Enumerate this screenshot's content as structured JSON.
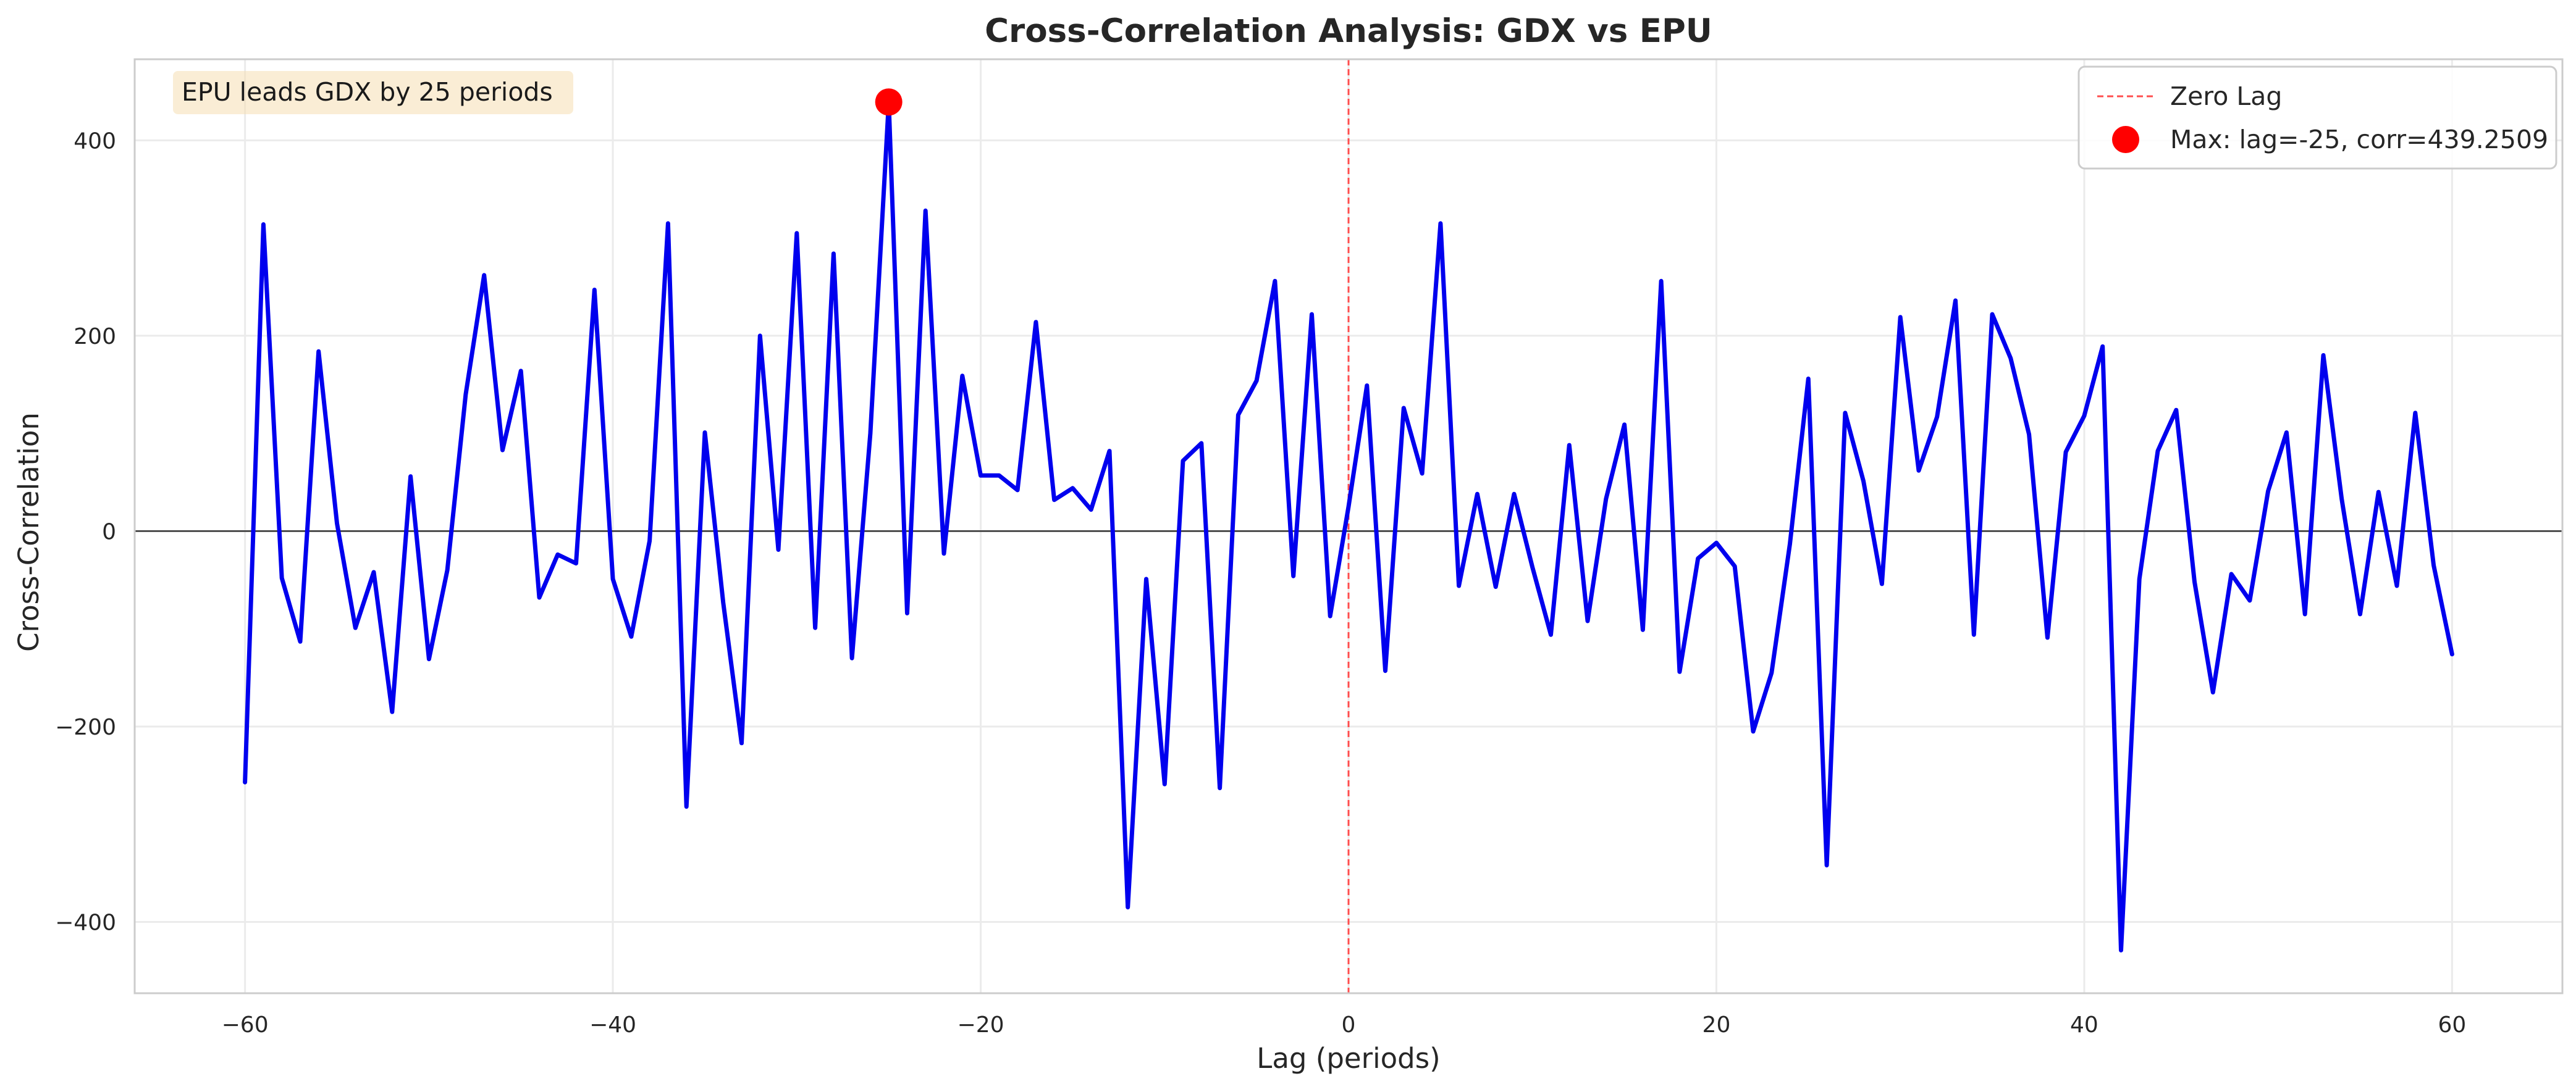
{
  "chart_data": {
    "type": "line",
    "title": "Cross-Correlation Analysis: GDX vs EPU",
    "xlabel": "Lag (periods)",
    "ylabel": "Cross-Correlation",
    "xlim": [
      -66,
      66
    ],
    "ylim": [
      -473,
      483
    ],
    "xticks": [
      -60,
      -40,
      -20,
      0,
      20,
      40,
      60
    ],
    "yticks": [
      -400,
      -200,
      0,
      200,
      400
    ],
    "xtick_labels": [
      "−60",
      "−40",
      "−20",
      "0",
      "20",
      "40",
      "60"
    ],
    "ytick_labels": [
      "−400",
      "−200",
      "0",
      "200",
      "400"
    ],
    "grid": true,
    "legend_position": "top-right",
    "annotation": "EPU leads GDX by 25 periods",
    "zero_lag_line": {
      "x": 0,
      "label": "Zero Lag",
      "color": "#ff4d4d"
    },
    "max_point": {
      "x": -25,
      "y": 439.2509,
      "label": "Max: lag=-25, corr=439.2509",
      "color": "#ff0000"
    },
    "series": [
      {
        "color": "#0000ee",
        "x": [
          -60,
          -59,
          -58,
          -57,
          -56,
          -55,
          -54,
          -53,
          -52,
          -51,
          -50,
          -49,
          -48,
          -47,
          -46,
          -45,
          -44,
          -43,
          -42,
          -41,
          -40,
          -39,
          -38,
          -37,
          -36,
          -35,
          -34,
          -33,
          -32,
          -31,
          -30,
          -29,
          -28,
          -27,
          -26,
          -25,
          -24,
          -23,
          -22,
          -21,
          -20,
          -19,
          -18,
          -17,
          -16,
          -15,
          -14,
          -13,
          -12,
          -11,
          -10,
          -9,
          -8,
          -7,
          -6,
          -5,
          -4,
          -3,
          -2,
          -1,
          0,
          1,
          2,
          3,
          4,
          5,
          6,
          7,
          8,
          9,
          10,
          11,
          12,
          13,
          14,
          15,
          16,
          17,
          18,
          19,
          20,
          21,
          22,
          23,
          24,
          25,
          26,
          27,
          28,
          29,
          30,
          31,
          32,
          33,
          34,
          35,
          36,
          37,
          38,
          39,
          40,
          41,
          42,
          43,
          44,
          45,
          46,
          47,
          48,
          49,
          50,
          51,
          52,
          53,
          54,
          55,
          56,
          57,
          58,
          59,
          60
        ],
        "values": [
          -257,
          314,
          -48,
          -113,
          184,
          8,
          -99,
          -42,
          -185,
          56,
          -131,
          -40,
          140,
          262,
          83,
          164,
          -68,
          -24,
          -33,
          247,
          -49,
          -108,
          -10,
          315,
          -282,
          101,
          -73,
          -217,
          200,
          -19,
          305,
          -99,
          284,
          -130,
          100,
          439,
          -84,
          328,
          -23,
          159,
          57,
          57,
          42,
          214,
          32,
          44,
          22,
          82,
          -385,
          -49,
          -259,
          72,
          90,
          -263,
          119,
          154,
          256,
          -46,
          222,
          -87,
          25,
          149,
          -143,
          126,
          59,
          315,
          -56,
          38,
          -57,
          38,
          -37,
          -106,
          88,
          -92,
          33,
          109,
          -101,
          256,
          -144,
          -28,
          -12,
          -36,
          -205,
          -145,
          -13,
          156,
          -342,
          121,
          51,
          -54,
          219,
          62,
          117,
          236,
          -106,
          222,
          177,
          99,
          -109,
          81,
          118,
          189,
          -429,
          -49,
          82,
          124,
          -52,
          -165,
          -44,
          -71,
          41,
          101,
          -85,
          180,
          33,
          -85,
          40,
          -56,
          121,
          -35,
          -126
        ]
      }
    ]
  }
}
